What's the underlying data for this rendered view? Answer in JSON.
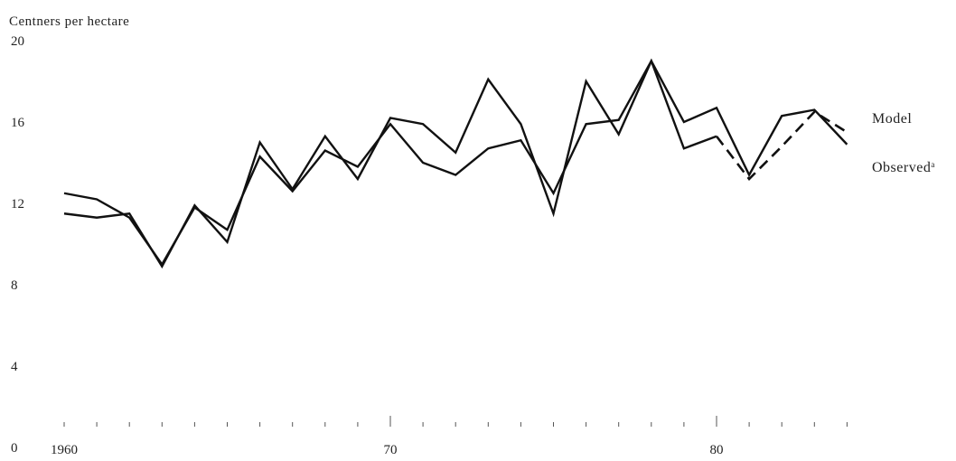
{
  "chart_data": {
    "type": "line",
    "title": "",
    "ylabel": "Centners per hectare",
    "xlabel": "",
    "ylim": [
      0,
      20
    ],
    "yticks": [
      {
        "value": 20,
        "label": "20"
      },
      {
        "value": 16,
        "label": "16"
      },
      {
        "value": 12,
        "label": "12"
      },
      {
        "value": 8,
        "label": "8"
      },
      {
        "value": 4,
        "label": "4"
      },
      {
        "value": 0,
        "label": "0"
      }
    ],
    "xlim": [
      1960,
      1985
    ],
    "xticks": [
      {
        "value": 1960,
        "label": "1960"
      },
      {
        "value": 1970,
        "label": "70"
      },
      {
        "value": 1980,
        "label": "80"
      }
    ],
    "x": [
      1960,
      1961,
      1962,
      1963,
      1964,
      1965,
      1966,
      1967,
      1968,
      1969,
      1970,
      1971,
      1972,
      1973,
      1974,
      1975,
      1976,
      1977,
      1978,
      1979,
      1980,
      1981,
      1982,
      1983,
      1984
    ],
    "series": [
      {
        "name": "Model",
        "style": "solid",
        "color": "#111111",
        "values": [
          11.5,
          11.3,
          11.5,
          8.9,
          11.9,
          10.1,
          15.0,
          12.7,
          15.3,
          13.2,
          16.2,
          15.9,
          14.5,
          18.1,
          15.9,
          11.5,
          18.0,
          15.4,
          19.0,
          16.0,
          16.7,
          13.4,
          16.3,
          16.6,
          14.9
        ]
      },
      {
        "name": "Observed",
        "name_mark": "a",
        "style": "solid",
        "color": "#111111",
        "values": [
          12.5,
          12.2,
          11.3,
          9.0,
          11.8,
          10.7,
          14.3,
          12.6,
          14.6,
          13.8,
          15.9,
          14.0,
          13.4,
          14.7,
          15.1,
          12.5,
          15.9,
          16.1,
          19.0,
          14.7,
          15.3,
          null,
          null,
          null,
          null
        ],
        "continuation": {
          "style": "dashed",
          "x": [
            1980,
            1981,
            1982,
            1983,
            1984
          ],
          "values": [
            15.3,
            13.2,
            14.8,
            16.5,
            15.5
          ]
        }
      }
    ],
    "legend": "right",
    "grid": false
  }
}
